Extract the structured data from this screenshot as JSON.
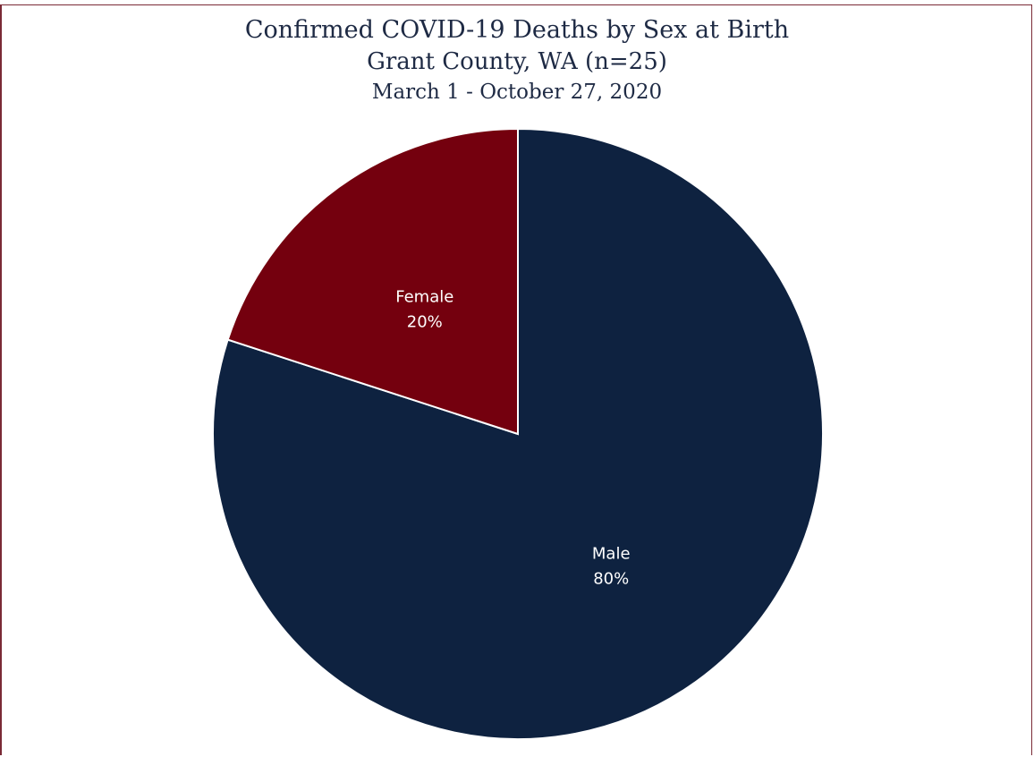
{
  "chart_data": {
    "type": "pie",
    "title": "Confirmed COVID-19 Deaths by Sex at Birth",
    "subtitle": "Grant County, WA (n=25)",
    "date_range": "March 1 - October 27, 2020",
    "legend": "none",
    "slices": [
      {
        "label": "Male",
        "value": 80,
        "value_label": "80%",
        "color": "#0e2240"
      },
      {
        "label": "Female",
        "value": 20,
        "value_label": "20%",
        "color": "#74000e"
      }
    ]
  }
}
